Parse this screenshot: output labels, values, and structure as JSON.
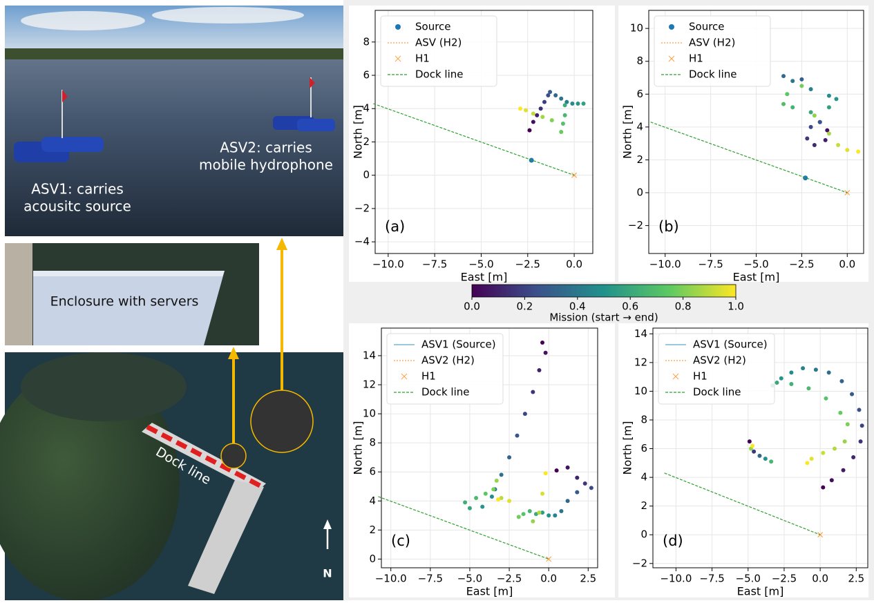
{
  "figure_left": {
    "lake": {
      "asv1_label": [
        "ASV1: carries",
        "acousitc source"
      ],
      "asv2_label": [
        "ASV2: carries",
        "mobile hydrophone"
      ]
    },
    "enclosure": {
      "label": "Enclosure with servers"
    },
    "map": {
      "dock_label": "Dock line",
      "north": "N"
    }
  },
  "colorbar": {
    "label": "Mission (start → end)",
    "lim": [
      0,
      1
    ],
    "colors": [
      "#440154",
      "#3b528b",
      "#21918c",
      "#5ec962",
      "#fde725"
    ],
    "ticks": [
      {
        "value": 0,
        "label": "0.0"
      },
      {
        "value": 0.2,
        "label": "0.2"
      },
      {
        "value": 0.4,
        "label": "0.4"
      },
      {
        "value": 0.6,
        "label": "0.6"
      },
      {
        "value": 0.8,
        "label": "0.8"
      },
      {
        "value": 1,
        "label": "1.0"
      }
    ]
  },
  "chart_data": [
    {
      "type": "scatter",
      "label": "(a)",
      "xlabel": "East [m]",
      "ylabel": "North [m]",
      "grid": true,
      "legend": "upper left",
      "xlim": [
        -10.7,
        1.0
      ],
      "ylim": [
        -4.7,
        9.9
      ],
      "xticks": [
        {
          "value": -10,
          "label": "−10.0"
        },
        {
          "value": -7.5,
          "label": "−7.5"
        },
        {
          "value": -5,
          "label": "−5.0"
        },
        {
          "value": -2.5,
          "label": "−2.5"
        },
        {
          "value": 0,
          "label": "0.0"
        }
      ],
      "yticks": [
        {
          "value": -4,
          "label": "−4"
        },
        {
          "value": -2,
          "label": "−2"
        },
        0,
        2,
        4,
        6,
        8
      ],
      "series": [
        {
          "name": "Source",
          "color": "#1f77b4",
          "marker": "dot",
          "x": [
            -2.3
          ],
          "y": [
            0.9
          ]
        },
        {
          "name": "ASV (H2)",
          "color": "#ff9f40",
          "marker": "trajectory",
          "x": [
            -2.4,
            -2.2,
            -2.0,
            -1.8,
            -1.6,
            -1.4,
            -1.3,
            -1.0,
            -0.7,
            -0.4,
            -0.1,
            0.2,
            0.5,
            -0.5,
            -0.5,
            -0.6,
            -0.7,
            -1.2,
            -1.7,
            -2.2,
            -2.6,
            -2.9
          ],
          "y": [
            2.7,
            3.2,
            3.6,
            4.0,
            4.4,
            4.8,
            5.0,
            4.8,
            4.6,
            4.4,
            4.3,
            4.3,
            4.3,
            4.2,
            3.6,
            3.1,
            2.6,
            3.3,
            3.5,
            3.7,
            3.9,
            4.0
          ]
        },
        {
          "name": "H1",
          "color": "#ff9f40",
          "marker": "x",
          "x": [
            0
          ],
          "y": [
            0
          ]
        },
        {
          "name": "Dock line",
          "color": "#2ca02c",
          "marker": "dashed",
          "x": [
            -10.8,
            0
          ],
          "y": [
            4.3,
            0
          ]
        }
      ]
    },
    {
      "type": "scatter",
      "label": "(b)",
      "xlabel": "East [m]",
      "ylabel": "North [m]",
      "grid": true,
      "legend": "upper left",
      "xlim": [
        -10.9,
        0.9
      ],
      "ylim": [
        -3.7,
        11.1
      ],
      "xticks": [
        {
          "value": -10,
          "label": "−10.0"
        },
        {
          "value": -7.5,
          "label": "−7.5"
        },
        {
          "value": -5,
          "label": "−5.0"
        },
        {
          "value": -2.5,
          "label": "−2.5"
        },
        {
          "value": 0,
          "label": "0.0"
        }
      ],
      "yticks": [
        {
          "value": -2,
          "label": "−2"
        },
        0,
        2,
        4,
        6,
        8,
        10
      ],
      "series": [
        {
          "name": "Source",
          "color": "#1f77b4",
          "marker": "dot",
          "x": [
            -2.3
          ],
          "y": [
            0.9
          ]
        },
        {
          "name": "ASV (H2)",
          "color": "#ff9f40",
          "marker": "trajectory",
          "x": [
            -1.5,
            -1.1,
            -1.2,
            -1.8,
            -2.2,
            -2.0,
            -1.5,
            -2.5,
            -3.5,
            -3.0,
            -2.0,
            -1.0,
            -0.6,
            -1.0,
            -2.0,
            -3.0,
            -3.5,
            -3.3,
            -2.5,
            -1.8,
            -1.0,
            -0.5,
            0.0,
            0.6
          ],
          "y": [
            4.3,
            3.8,
            3.2,
            2.9,
            3.3,
            4.0,
            4.3,
            6.9,
            7.1,
            6.8,
            6.3,
            5.9,
            5.7,
            5.2,
            4.9,
            5.2,
            5.4,
            6.0,
            6.5,
            4.7,
            3.6,
            2.9,
            2.6,
            2.5
          ]
        },
        {
          "name": "H1",
          "color": "#ff9f40",
          "marker": "x",
          "x": [
            0
          ],
          "y": [
            0
          ]
        },
        {
          "name": "Dock line",
          "color": "#2ca02c",
          "marker": "dashed",
          "x": [
            -10.8,
            0
          ],
          "y": [
            4.3,
            0
          ]
        }
      ]
    },
    {
      "type": "scatter",
      "label": "(c)",
      "xlabel": "East [m]",
      "ylabel": "North [m]",
      "grid": true,
      "legend": "upper left",
      "xlim": [
        -10.6,
        3.1
      ],
      "ylim": [
        -0.6,
        15.9
      ],
      "xticks": [
        {
          "value": -10,
          "label": "−10.0"
        },
        {
          "value": -7.5,
          "label": "−7.5"
        },
        {
          "value": -5,
          "label": "−5.0"
        },
        {
          "value": -2.5,
          "label": "−2.5"
        },
        {
          "value": 0,
          "label": "0.0"
        },
        {
          "value": 2.5,
          "label": "2.5"
        }
      ],
      "yticks": [
        0,
        2,
        4,
        6,
        8,
        10,
        12,
        14
      ],
      "series": [
        {
          "name": "ASV1 (Source)",
          "color": "#5fa8c8",
          "marker": "trajectory",
          "x": [
            -0.4,
            -0.2,
            -0.6,
            -1.0,
            -1.5,
            -2.0,
            -2.5,
            -3.0,
            -3.4,
            -3.6,
            -4.2,
            -5.0,
            -5.3,
            -4.6,
            -4.0,
            -3.5,
            -3.3,
            -3.0,
            -2.5,
            -3.2
          ],
          "y": [
            14.9,
            14.2,
            13.0,
            11.5,
            10.0,
            8.5,
            7.0,
            5.8,
            4.8,
            4.3,
            3.6,
            3.5,
            3.9,
            4.2,
            4.5,
            4.8,
            5.4,
            4.2,
            4.0,
            4.1
          ]
        },
        {
          "name": "ASV2 (H2)",
          "color": "#ff9f40",
          "marker": "trajectory",
          "x": [
            0.5,
            1.2,
            1.8,
            2.3,
            2.7,
            1.8,
            1.2,
            0.8,
            0.4,
            0.0,
            -0.4,
            -0.8,
            -1.2,
            -1.6,
            -1.9,
            -1.0,
            -0.6,
            -0.4,
            -0.2
          ],
          "y": [
            6.1,
            6.3,
            5.6,
            5.2,
            4.9,
            4.6,
            4.0,
            3.3,
            3.0,
            3.0,
            3.2,
            3.1,
            3.3,
            3.1,
            2.9,
            2.6,
            3.2,
            4.5,
            5.9
          ]
        },
        {
          "name": "H1",
          "color": "#ff9f40",
          "marker": "x",
          "x": [
            0
          ],
          "y": [
            0
          ]
        },
        {
          "name": "Dock line",
          "color": "#2ca02c",
          "marker": "dashed",
          "x": [
            -10.8,
            0
          ],
          "y": [
            4.3,
            0
          ]
        }
      ]
    },
    {
      "type": "scatter",
      "label": "(d)",
      "xlabel": "East [m]",
      "ylabel": "North [m]",
      "grid": true,
      "legend": "upper left",
      "xlim": [
        -11.6,
        3.3
      ],
      "ylim": [
        -2.3,
        14.4
      ],
      "xticks": [
        {
          "value": -10,
          "label": "−10.0"
        },
        {
          "value": -7.5,
          "label": "−7.5"
        },
        {
          "value": -5,
          "label": "−5.0"
        },
        {
          "value": -2.5,
          "label": "−2.5"
        },
        {
          "value": 0,
          "label": "0.0"
        },
        {
          "value": 2.5,
          "label": "2.5"
        }
      ],
      "yticks": [
        {
          "value": -2,
          "label": "−2"
        },
        0,
        2,
        4,
        6,
        8,
        10,
        12,
        14
      ],
      "series": [
        {
          "name": "ASV1 (Source)",
          "color": "#5fa8c8",
          "marker": "trajectory",
          "x": [
            0.2,
            0.8,
            1.6,
            2.3,
            2.8,
            2.9,
            2.7,
            2.2,
            1.5,
            0.6,
            -0.3,
            -1.2,
            -2.0,
            -2.7,
            -3.3,
            -3.0,
            -2.0,
            -0.8,
            0.4,
            1.4,
            1.9,
            1.7,
            1.0,
            0.2,
            -0.6,
            -0.9
          ],
          "y": [
            3.3,
            3.8,
            4.5,
            5.4,
            6.5,
            7.6,
            8.7,
            9.8,
            10.7,
            11.3,
            11.5,
            11.6,
            11.3,
            10.9,
            10.4,
            10.6,
            10.5,
            10.2,
            9.5,
            8.5,
            7.7,
            6.5,
            6.0,
            5.7,
            5.3,
            5.0
          ]
        },
        {
          "name": "ASV2 (H2)",
          "color": "#ff9f40",
          "marker": "trajectory",
          "x": [
            -4.9,
            -4.6,
            -4.2,
            -3.8,
            -3.4,
            -4.8,
            -4.7
          ],
          "y": [
            6.5,
            5.8,
            5.5,
            5.3,
            5.1,
            6.0,
            6.2
          ]
        },
        {
          "name": "H1",
          "color": "#ff9f40",
          "marker": "x",
          "x": [
            0
          ],
          "y": [
            0
          ]
        },
        {
          "name": "Dock line",
          "color": "#2ca02c",
          "marker": "dashed",
          "x": [
            -10.8,
            0
          ],
          "y": [
            4.3,
            0
          ]
        }
      ]
    }
  ]
}
